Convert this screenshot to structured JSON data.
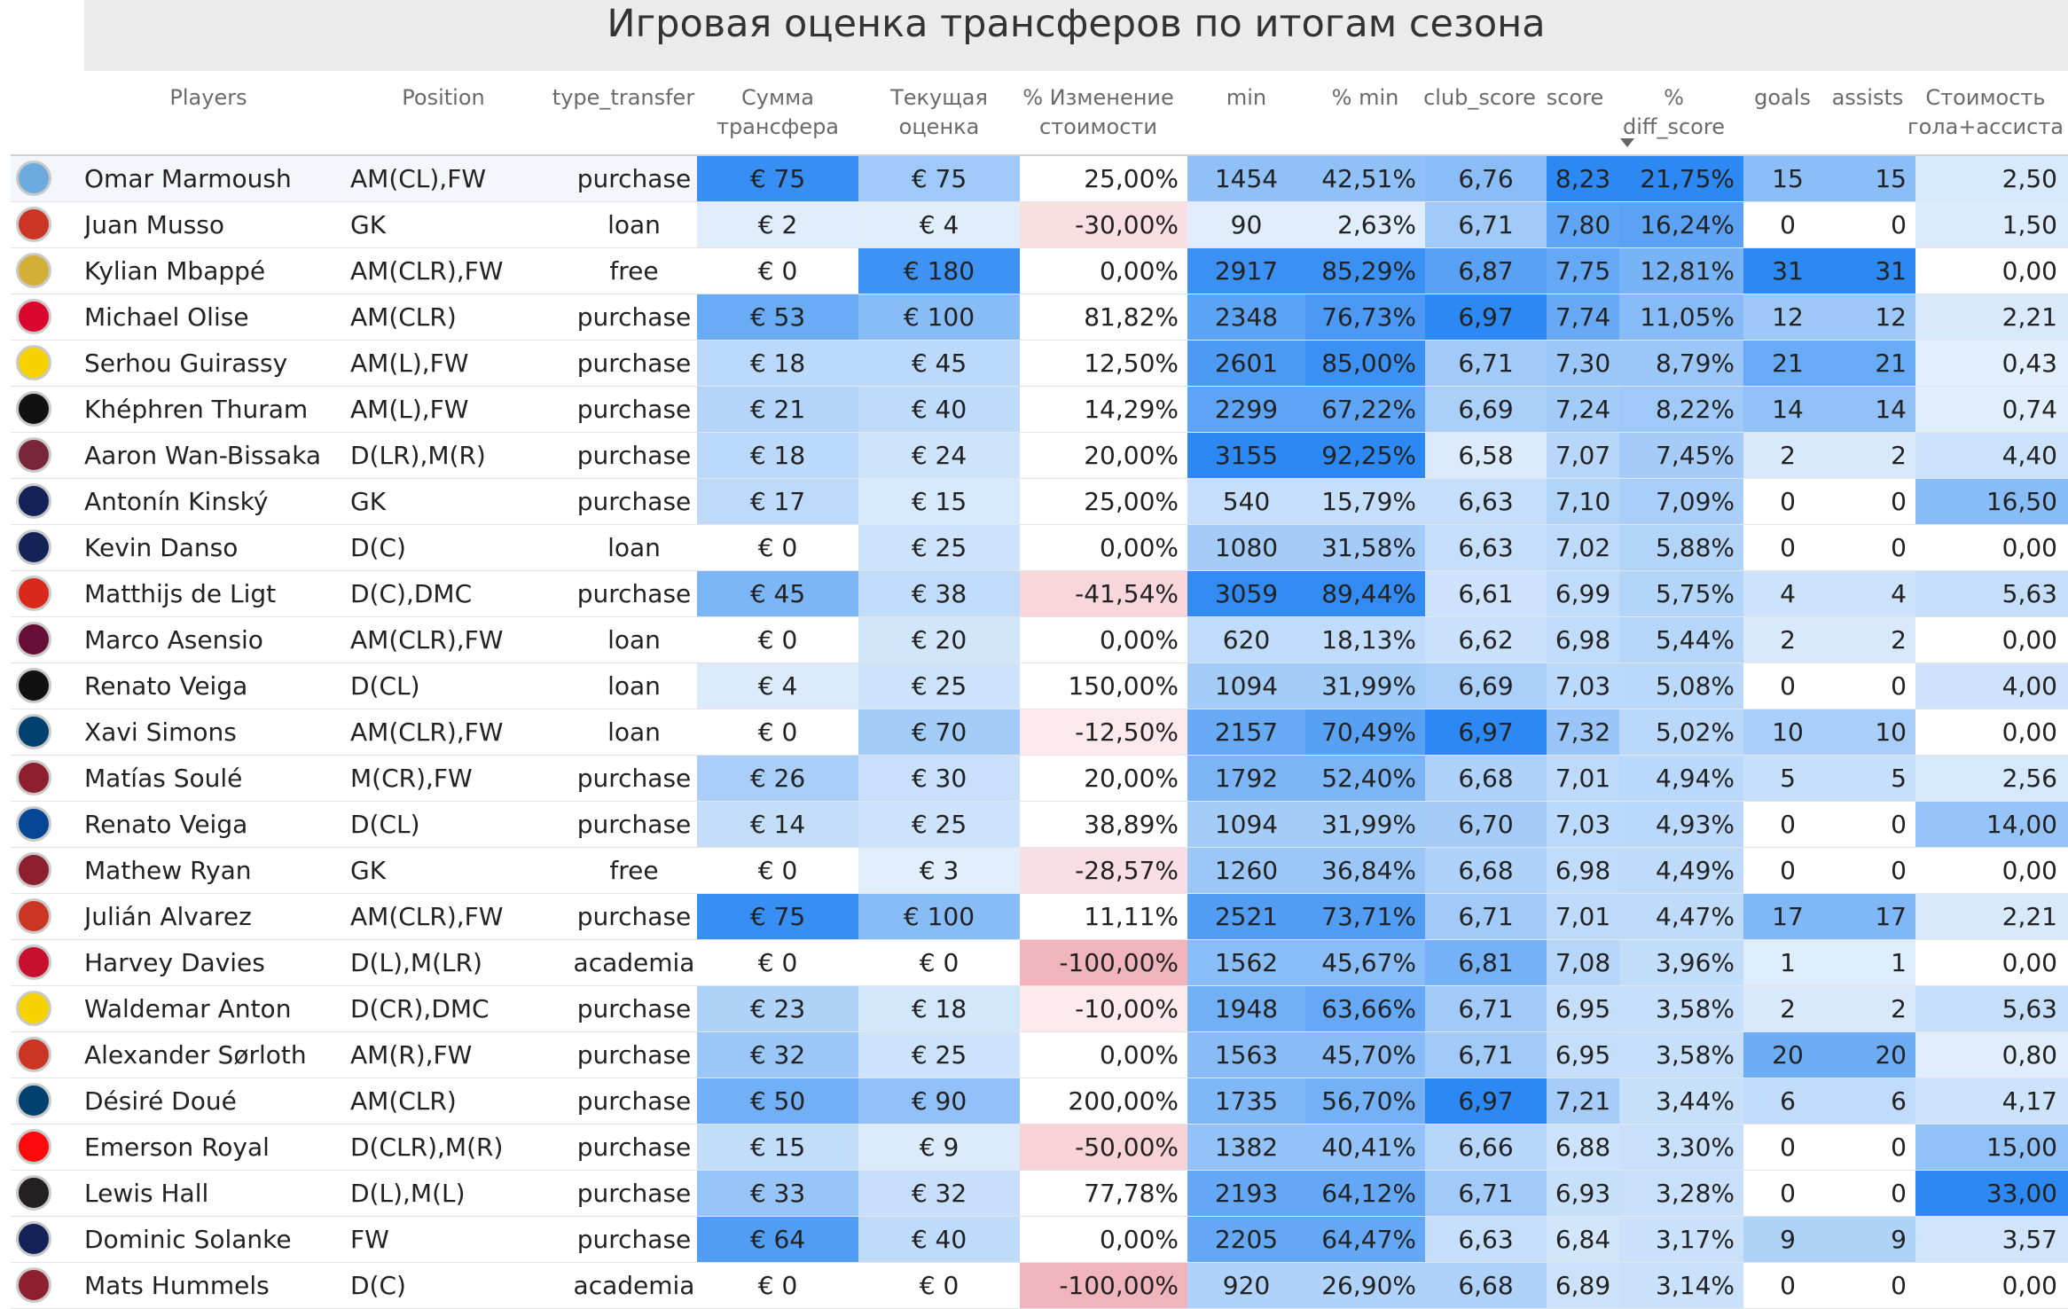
{
  "title": "Игровая оценка трансферов по итогам сезона",
  "columns": {
    "players": "Players",
    "position": "Position",
    "type_transfer": "type_transfer",
    "sum": "Сумма\nтрансфера",
    "current": "Текущая\nоценка",
    "pct_change": "% Изменение\nстоимости",
    "min": "min",
    "pct_min": "% min",
    "club_score": "club_score",
    "score": "score",
    "pct_diff": "%\ndiff_score",
    "goals": "goals",
    "assists": "assists",
    "cost": "Стоимость\nгола+ассиста"
  },
  "colors": {
    "blue_dark": "#2c88f2",
    "blue_light": "#e4f0fc",
    "red": "#f0b6bd",
    "red_light": "#fbe8ea"
  },
  "rows": [
    {
      "logo": "Man City",
      "logo_color": "#6cabdd",
      "name": "Omar Marmoush",
      "position": "AM(CL),FW",
      "type": "purchase",
      "sum": "€ 75",
      "sum_v": 75,
      "current": "€ 75",
      "current_v": 75,
      "pct": "25,00%",
      "pct_v": 25,
      "min": "1454",
      "min_v": 1454,
      "pmin": "42,51%",
      "pmin_v": 42.51,
      "club": "6,76",
      "club_v": 6.76,
      "score": "8,23",
      "score_v": 8.23,
      "diff": "21,75%",
      "diff_v": 21.75,
      "goals": "15",
      "goals_v": 15,
      "assists": "15",
      "assists_v": 15,
      "cost": "2,50",
      "cost_v": 2.5
    },
    {
      "logo": "Atletico",
      "logo_color": "#cb3524",
      "name": "Juan Musso",
      "position": "GK",
      "type": "loan",
      "sum": "€ 2",
      "sum_v": 2,
      "current": "€ 4",
      "current_v": 4,
      "pct": "-30,00%",
      "pct_v": -30,
      "min": "90",
      "min_v": 90,
      "pmin": "2,63%",
      "pmin_v": 2.63,
      "club": "6,71",
      "club_v": 6.71,
      "score": "7,80",
      "score_v": 7.8,
      "diff": "16,24%",
      "diff_v": 16.24,
      "goals": "0",
      "goals_v": 0,
      "assists": "0",
      "assists_v": 0,
      "cost": "1,50",
      "cost_v": 1.5
    },
    {
      "logo": "Real",
      "logo_color": "#d4af37",
      "name": "Kylian Mbappé",
      "position": "AM(CLR),FW",
      "type": "free",
      "sum": "€ 0",
      "sum_v": 0,
      "current": "€ 180",
      "current_v": 180,
      "pct": "0,00%",
      "pct_v": 0,
      "min": "2917",
      "min_v": 2917,
      "pmin": "85,29%",
      "pmin_v": 85.29,
      "club": "6,87",
      "club_v": 6.87,
      "score": "7,75",
      "score_v": 7.75,
      "diff": "12,81%",
      "diff_v": 12.81,
      "goals": "31",
      "goals_v": 31,
      "assists": "31",
      "assists_v": 31,
      "cost": "0,00",
      "cost_v": 0
    },
    {
      "logo": "Bayern",
      "logo_color": "#dc052d",
      "name": "Michael Olise",
      "position": "AM(CLR)",
      "type": "purchase",
      "sum": "€ 53",
      "sum_v": 53,
      "current": "€ 100",
      "current_v": 100,
      "pct": "81,82%",
      "pct_v": 81.82,
      "min": "2348",
      "min_v": 2348,
      "pmin": "76,73%",
      "pmin_v": 76.73,
      "club": "6,97",
      "club_v": 6.97,
      "score": "7,74",
      "score_v": 7.74,
      "diff": "11,05%",
      "diff_v": 11.05,
      "goals": "12",
      "goals_v": 12,
      "assists": "12",
      "assists_v": 12,
      "cost": "2,21",
      "cost_v": 2.21
    },
    {
      "logo": "BVB",
      "logo_color": "#f5d200",
      "name": "Serhou Guirassy",
      "position": "AM(L),FW",
      "type": "purchase",
      "sum": "€ 18",
      "sum_v": 18,
      "current": "€ 45",
      "current_v": 45,
      "pct": "12,50%",
      "pct_v": 12.5,
      "min": "2601",
      "min_v": 2601,
      "pmin": "85,00%",
      "pmin_v": 85,
      "club": "6,71",
      "club_v": 6.71,
      "score": "7,30",
      "score_v": 7.3,
      "diff": "8,79%",
      "diff_v": 8.79,
      "goals": "21",
      "goals_v": 21,
      "assists": "21",
      "assists_v": 21,
      "cost": "0,43",
      "cost_v": 0.43
    },
    {
      "logo": "Juve",
      "logo_color": "#111111",
      "name": "Khéphren Thuram",
      "position": "AM(L),FW",
      "type": "purchase",
      "sum": "€ 21",
      "sum_v": 21,
      "current": "€ 40",
      "current_v": 40,
      "pct": "14,29%",
      "pct_v": 14.29,
      "min": "2299",
      "min_v": 2299,
      "pmin": "67,22%",
      "pmin_v": 67.22,
      "club": "6,69",
      "club_v": 6.69,
      "score": "7,24",
      "score_v": 7.24,
      "diff": "8,22%",
      "diff_v": 8.22,
      "goals": "14",
      "goals_v": 14,
      "assists": "14",
      "assists_v": 14,
      "cost": "0,74",
      "cost_v": 0.74
    },
    {
      "logo": "West Ham",
      "logo_color": "#7a263a",
      "name": "Aaron Wan-Bissaka",
      "position": "D(LR),M(R)",
      "type": "purchase",
      "sum": "€ 18",
      "sum_v": 18,
      "current": "€ 24",
      "current_v": 24,
      "pct": "20,00%",
      "pct_v": 20,
      "min": "3155",
      "min_v": 3155,
      "pmin": "92,25%",
      "pmin_v": 92.25,
      "club": "6,58",
      "club_v": 6.58,
      "score": "7,07",
      "score_v": 7.07,
      "diff": "7,45%",
      "diff_v": 7.45,
      "goals": "2",
      "goals_v": 2,
      "assists": "2",
      "assists_v": 2,
      "cost": "4,40",
      "cost_v": 4.4
    },
    {
      "logo": "Spurs",
      "logo_color": "#132257",
      "name": "Antonín Kinský",
      "position": "GK",
      "type": "purchase",
      "sum": "€ 17",
      "sum_v": 17,
      "current": "€ 15",
      "current_v": 15,
      "pct": "25,00%",
      "pct_v": 25,
      "min": "540",
      "min_v": 540,
      "pmin": "15,79%",
      "pmin_v": 15.79,
      "club": "6,63",
      "club_v": 6.63,
      "score": "7,10",
      "score_v": 7.1,
      "diff": "7,09%",
      "diff_v": 7.09,
      "goals": "0",
      "goals_v": 0,
      "assists": "0",
      "assists_v": 0,
      "cost": "16,50",
      "cost_v": 16.5
    },
    {
      "logo": "Spurs",
      "logo_color": "#132257",
      "name": "Kevin Danso",
      "position": "D(C)",
      "type": "loan",
      "sum": "€ 0",
      "sum_v": 0,
      "current": "€ 25",
      "current_v": 25,
      "pct": "0,00%",
      "pct_v": 0,
      "min": "1080",
      "min_v": 1080,
      "pmin": "31,58%",
      "pmin_v": 31.58,
      "club": "6,63",
      "club_v": 6.63,
      "score": "7,02",
      "score_v": 7.02,
      "diff": "5,88%",
      "diff_v": 5.88,
      "goals": "0",
      "goals_v": 0,
      "assists": "0",
      "assists_v": 0,
      "cost": "0,00",
      "cost_v": 0
    },
    {
      "logo": "Man Utd",
      "logo_color": "#da291c",
      "name": "Matthijs de Ligt",
      "position": "D(C),DMC",
      "type": "purchase",
      "sum": "€ 45",
      "sum_v": 45,
      "current": "€ 38",
      "current_v": 38,
      "pct": "-41,54%",
      "pct_v": -41.54,
      "min": "3059",
      "min_v": 3059,
      "pmin": "89,44%",
      "pmin_v": 89.44,
      "club": "6,61",
      "club_v": 6.61,
      "score": "6,99",
      "score_v": 6.99,
      "diff": "5,75%",
      "diff_v": 5.75,
      "goals": "4",
      "goals_v": 4,
      "assists": "4",
      "assists_v": 4,
      "cost": "5,63",
      "cost_v": 5.63
    },
    {
      "logo": "Villa",
      "logo_color": "#670e36",
      "name": "Marco Asensio",
      "position": "AM(CLR),FW",
      "type": "loan",
      "sum": "€ 0",
      "sum_v": 0,
      "current": "€ 20",
      "current_v": 20,
      "pct": "0,00%",
      "pct_v": 0,
      "min": "620",
      "min_v": 620,
      "pmin": "18,13%",
      "pmin_v": 18.13,
      "club": "6,62",
      "club_v": 6.62,
      "score": "6,98",
      "score_v": 6.98,
      "diff": "5,44%",
      "diff_v": 5.44,
      "goals": "2",
      "goals_v": 2,
      "assists": "2",
      "assists_v": 2,
      "cost": "0,00",
      "cost_v": 0
    },
    {
      "logo": "Juve",
      "logo_color": "#111111",
      "name": "Renato Veiga",
      "position": "D(CL)",
      "type": "loan",
      "sum": "€ 4",
      "sum_v": 4,
      "current": "€ 25",
      "current_v": 25,
      "pct": "150,00%",
      "pct_v": 150,
      "min": "1094",
      "min_v": 1094,
      "pmin": "31,99%",
      "pmin_v": 31.99,
      "club": "6,69",
      "club_v": 6.69,
      "score": "7,03",
      "score_v": 7.03,
      "diff": "5,08%",
      "diff_v": 5.08,
      "goals": "0",
      "goals_v": 0,
      "assists": "0",
      "assists_v": 0,
      "cost": "4,00",
      "cost_v": 4
    },
    {
      "logo": "PSG",
      "logo_color": "#004170",
      "name": "Xavi Simons",
      "position": "AM(CLR),FW",
      "type": "loan",
      "sum": "€ 0",
      "sum_v": 0,
      "current": "€ 70",
      "current_v": 70,
      "pct": "-12,50%",
      "pct_v": -12.5,
      "min": "2157",
      "min_v": 2157,
      "pmin": "70,49%",
      "pmin_v": 70.49,
      "club": "6,97",
      "club_v": 6.97,
      "score": "7,32",
      "score_v": 7.32,
      "diff": "5,02%",
      "diff_v": 5.02,
      "goals": "10",
      "goals_v": 10,
      "assists": "10",
      "assists_v": 10,
      "cost": "0,00",
      "cost_v": 0
    },
    {
      "logo": "Roma",
      "logo_color": "#8e1f2f",
      "name": "Matías Soulé",
      "position": "M(CR),FW",
      "type": "purchase",
      "sum": "€ 26",
      "sum_v": 26,
      "current": "€ 30",
      "current_v": 30,
      "pct": "20,00%",
      "pct_v": 20,
      "min": "1792",
      "min_v": 1792,
      "pmin": "52,40%",
      "pmin_v": 52.4,
      "club": "6,68",
      "club_v": 6.68,
      "score": "7,01",
      "score_v": 7.01,
      "diff": "4,94%",
      "diff_v": 4.94,
      "goals": "5",
      "goals_v": 5,
      "assists": "5",
      "assists_v": 5,
      "cost": "2,56",
      "cost_v": 2.56
    },
    {
      "logo": "Chelsea",
      "logo_color": "#034694",
      "name": "Renato Veiga",
      "position": "D(CL)",
      "type": "purchase",
      "sum": "€ 14",
      "sum_v": 14,
      "current": "€ 25",
      "current_v": 25,
      "pct": "38,89%",
      "pct_v": 38.89,
      "min": "1094",
      "min_v": 1094,
      "pmin": "31,99%",
      "pmin_v": 31.99,
      "club": "6,70",
      "club_v": 6.7,
      "score": "7,03",
      "score_v": 7.03,
      "diff": "4,93%",
      "diff_v": 4.93,
      "goals": "0",
      "goals_v": 0,
      "assists": "0",
      "assists_v": 0,
      "cost": "14,00",
      "cost_v": 14
    },
    {
      "logo": "Roma",
      "logo_color": "#8e1f2f",
      "name": "Mathew Ryan",
      "position": "GK",
      "type": "free",
      "sum": "€ 0",
      "sum_v": 0,
      "current": "€ 3",
      "current_v": 3,
      "pct": "-28,57%",
      "pct_v": -28.57,
      "min": "1260",
      "min_v": 1260,
      "pmin": "36,84%",
      "pmin_v": 36.84,
      "club": "6,68",
      "club_v": 6.68,
      "score": "6,98",
      "score_v": 6.98,
      "diff": "4,49%",
      "diff_v": 4.49,
      "goals": "0",
      "goals_v": 0,
      "assists": "0",
      "assists_v": 0,
      "cost": "0,00",
      "cost_v": 0
    },
    {
      "logo": "Atletico",
      "logo_color": "#cb3524",
      "name": "Julián Alvarez",
      "position": "AM(CLR),FW",
      "type": "purchase",
      "sum": "€ 75",
      "sum_v": 75,
      "current": "€ 100",
      "current_v": 100,
      "pct": "11,11%",
      "pct_v": 11.11,
      "min": "2521",
      "min_v": 2521,
      "pmin": "73,71%",
      "pmin_v": 73.71,
      "club": "6,71",
      "club_v": 6.71,
      "score": "7,01",
      "score_v": 7.01,
      "diff": "4,47%",
      "diff_v": 4.47,
      "goals": "17",
      "goals_v": 17,
      "assists": "17",
      "assists_v": 17,
      "cost": "2,21",
      "cost_v": 2.21
    },
    {
      "logo": "Liverpool",
      "logo_color": "#c8102e",
      "name": "Harvey Davies",
      "position": "D(L),M(LR)",
      "type": "academia",
      "sum": "€ 0",
      "sum_v": 0,
      "current": "€ 0",
      "current_v": 0,
      "pct": "-100,00%",
      "pct_v": -100,
      "min": "1562",
      "min_v": 1562,
      "pmin": "45,67%",
      "pmin_v": 45.67,
      "club": "6,81",
      "club_v": 6.81,
      "score": "7,08",
      "score_v": 7.08,
      "diff": "3,96%",
      "diff_v": 3.96,
      "goals": "1",
      "goals_v": 1,
      "assists": "1",
      "assists_v": 1,
      "cost": "0,00",
      "cost_v": 0
    },
    {
      "logo": "BVB",
      "logo_color": "#f5d200",
      "name": "Waldemar Anton",
      "position": "D(CR),DMC",
      "type": "purchase",
      "sum": "€ 23",
      "sum_v": 23,
      "current": "€ 18",
      "current_v": 18,
      "pct": "-10,00%",
      "pct_v": -10,
      "min": "1948",
      "min_v": 1948,
      "pmin": "63,66%",
      "pmin_v": 63.66,
      "club": "6,71",
      "club_v": 6.71,
      "score": "6,95",
      "score_v": 6.95,
      "diff": "3,58%",
      "diff_v": 3.58,
      "goals": "2",
      "goals_v": 2,
      "assists": "2",
      "assists_v": 2,
      "cost": "5,63",
      "cost_v": 5.63
    },
    {
      "logo": "Atletico",
      "logo_color": "#cb3524",
      "name": "Alexander Sørloth",
      "position": "AM(R),FW",
      "type": "purchase",
      "sum": "€ 32",
      "sum_v": 32,
      "current": "€ 25",
      "current_v": 25,
      "pct": "0,00%",
      "pct_v": 0,
      "min": "1563",
      "min_v": 1563,
      "pmin": "45,70%",
      "pmin_v": 45.7,
      "club": "6,71",
      "club_v": 6.71,
      "score": "6,95",
      "score_v": 6.95,
      "diff": "3,58%",
      "diff_v": 3.58,
      "goals": "20",
      "goals_v": 20,
      "assists": "20",
      "assists_v": 20,
      "cost": "0,80",
      "cost_v": 0.8
    },
    {
      "logo": "PSG",
      "logo_color": "#004170",
      "name": "Désiré Doué",
      "position": "AM(CLR)",
      "type": "purchase",
      "sum": "€ 50",
      "sum_v": 50,
      "current": "€ 90",
      "current_v": 90,
      "pct": "200,00%",
      "pct_v": 200,
      "min": "1735",
      "min_v": 1735,
      "pmin": "56,70%",
      "pmin_v": 56.7,
      "club": "6,97",
      "club_v": 6.97,
      "score": "7,21",
      "score_v": 7.21,
      "diff": "3,44%",
      "diff_v": 3.44,
      "goals": "6",
      "goals_v": 6,
      "assists": "6",
      "assists_v": 6,
      "cost": "4,17",
      "cost_v": 4.17
    },
    {
      "logo": "Milan",
      "logo_color": "#fb090b",
      "name": "Emerson Royal",
      "position": "D(CLR),M(R)",
      "type": "purchase",
      "sum": "€ 15",
      "sum_v": 15,
      "current": "€ 9",
      "current_v": 9,
      "pct": "-50,00%",
      "pct_v": -50,
      "min": "1382",
      "min_v": 1382,
      "pmin": "40,41%",
      "pmin_v": 40.41,
      "club": "6,66",
      "club_v": 6.66,
      "score": "6,88",
      "score_v": 6.88,
      "diff": "3,30%",
      "diff_v": 3.3,
      "goals": "0",
      "goals_v": 0,
      "assists": "0",
      "assists_v": 0,
      "cost": "15,00",
      "cost_v": 15
    },
    {
      "logo": "Newcastle",
      "logo_color": "#241f20",
      "name": "Lewis Hall",
      "position": "D(L),M(L)",
      "type": "purchase",
      "sum": "€ 33",
      "sum_v": 33,
      "current": "€ 32",
      "current_v": 32,
      "pct": "77,78%",
      "pct_v": 77.78,
      "min": "2193",
      "min_v": 2193,
      "pmin": "64,12%",
      "pmin_v": 64.12,
      "club": "6,71",
      "club_v": 6.71,
      "score": "6,93",
      "score_v": 6.93,
      "diff": "3,28%",
      "diff_v": 3.28,
      "goals": "0",
      "goals_v": 0,
      "assists": "0",
      "assists_v": 0,
      "cost": "33,00",
      "cost_v": 33
    },
    {
      "logo": "Spurs",
      "logo_color": "#132257",
      "name": "Dominic Solanke",
      "position": "FW",
      "type": "purchase",
      "sum": "€ 64",
      "sum_v": 64,
      "current": "€ 40",
      "current_v": 40,
      "pct": "0,00%",
      "pct_v": 0,
      "min": "2205",
      "min_v": 2205,
      "pmin": "64,47%",
      "pmin_v": 64.47,
      "club": "6,63",
      "club_v": 6.63,
      "score": "6,84",
      "score_v": 6.84,
      "diff": "3,17%",
      "diff_v": 3.17,
      "goals": "9",
      "goals_v": 9,
      "assists": "9",
      "assists_v": 9,
      "cost": "3,57",
      "cost_v": 3.57
    },
    {
      "logo": "Roma",
      "logo_color": "#8e1f2f",
      "name": "Mats Hummels",
      "position": "D(C)",
      "type": "academia",
      "sum": "€ 0",
      "sum_v": 0,
      "current": "€ 0",
      "current_v": 0,
      "pct": "-100,00%",
      "pct_v": -100,
      "min": "920",
      "min_v": 920,
      "pmin": "26,90%",
      "pmin_v": 26.9,
      "club": "6,68",
      "club_v": 6.68,
      "score": "6,89",
      "score_v": 6.89,
      "diff": "3,14%",
      "diff_v": 3.14,
      "goals": "0",
      "goals_v": 0,
      "assists": "0",
      "assists_v": 0,
      "cost": "0,00",
      "cost_v": 0
    }
  ]
}
